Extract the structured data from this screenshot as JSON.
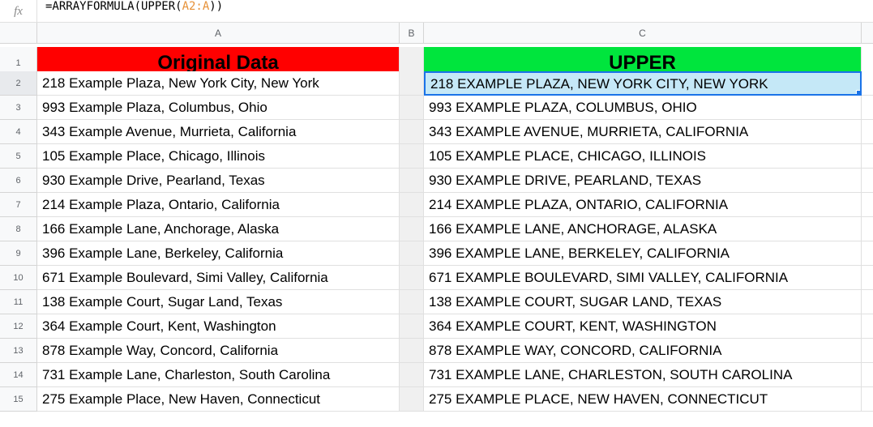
{
  "formula": {
    "prefix": "=ARRAYFORMULA(UPPER(",
    "ref": "A2:A",
    "suffix": "))"
  },
  "columns": [
    "A",
    "B",
    "C"
  ],
  "headers": {
    "colA": "Original Data",
    "colC": "UPPER"
  },
  "rows": [
    {
      "n": "1"
    },
    {
      "n": "2",
      "a": "218 Example Plaza, New York City, New York",
      "c": "218 EXAMPLE PLAZA, NEW YORK CITY, NEW YORK"
    },
    {
      "n": "3",
      "a": "993 Example Plaza, Columbus, Ohio",
      "c": "993 EXAMPLE PLAZA, COLUMBUS, OHIO"
    },
    {
      "n": "4",
      "a": "343 Example Avenue, Murrieta, California",
      "c": "343 EXAMPLE AVENUE, MURRIETA, CALIFORNIA"
    },
    {
      "n": "5",
      "a": "105 Example Place, Chicago, Illinois",
      "c": "105 EXAMPLE PLACE, CHICAGO, ILLINOIS"
    },
    {
      "n": "6",
      "a": "930 Example Drive, Pearland, Texas",
      "c": "930 EXAMPLE DRIVE, PEARLAND, TEXAS"
    },
    {
      "n": "7",
      "a": "214 Example Plaza, Ontario, California",
      "c": "214 EXAMPLE PLAZA, ONTARIO, CALIFORNIA"
    },
    {
      "n": "8",
      "a": "166 Example Lane, Anchorage, Alaska",
      "c": "166 EXAMPLE LANE, ANCHORAGE, ALASKA"
    },
    {
      "n": "9",
      "a": "396 Example Lane, Berkeley, California",
      "c": "396 EXAMPLE LANE, BERKELEY, CALIFORNIA"
    },
    {
      "n": "10",
      "a": "671 Example Boulevard, Simi Valley, California",
      "c": "671 EXAMPLE BOULEVARD, SIMI VALLEY, CALIFORNIA"
    },
    {
      "n": "11",
      "a": "138 Example Court, Sugar Land, Texas",
      "c": "138 EXAMPLE COURT, SUGAR LAND, TEXAS"
    },
    {
      "n": "12",
      "a": "364 Example Court, Kent, Washington",
      "c": "364 EXAMPLE COURT, KENT, WASHINGTON"
    },
    {
      "n": "13",
      "a": "878 Example Way, Concord, California",
      "c": "878 EXAMPLE WAY, CONCORD, CALIFORNIA"
    },
    {
      "n": "14",
      "a": "731 Example Lane, Charleston, South Carolina",
      "c": "731 EXAMPLE LANE, CHARLESTON, SOUTH CAROLINA"
    },
    {
      "n": "15",
      "a": "275 Example Place, New Haven, Connecticut",
      "c": "275 EXAMPLE PLACE, NEW HAVEN, CONNECTICUT"
    }
  ],
  "selectedRow": "2",
  "selectedCol": "C"
}
